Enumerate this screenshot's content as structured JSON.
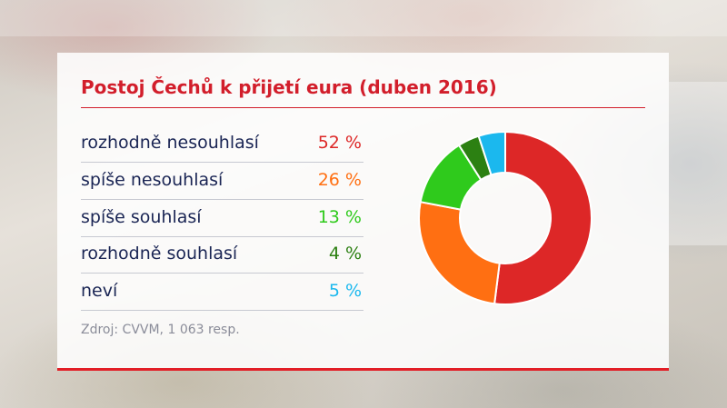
{
  "chart_data": {
    "type": "pie",
    "title": "Postoj Čechů k přijetí eura (duben 2016)",
    "categories": [
      "rozhodně nesouhlasí",
      "spíše nesouhlasí",
      "spíše souhlasí",
      "rozhodně souhlasí",
      "neví"
    ],
    "values": [
      52,
      26,
      13,
      4,
      5
    ],
    "value_labels": [
      "52 %",
      "26 %",
      "13 %",
      "4 %",
      "5 %"
    ],
    "colors": [
      "#dd2727",
      "#ff6f12",
      "#2fca1c",
      "#2c8012",
      "#1bb8ee"
    ],
    "donut": true,
    "legend": "left",
    "source": "Zdroj: CVVM, 1 063 resp."
  },
  "colors": {
    "accent": "#d21e2b",
    "label_text": "#1a2554",
    "source_text": "#8a8c99"
  }
}
